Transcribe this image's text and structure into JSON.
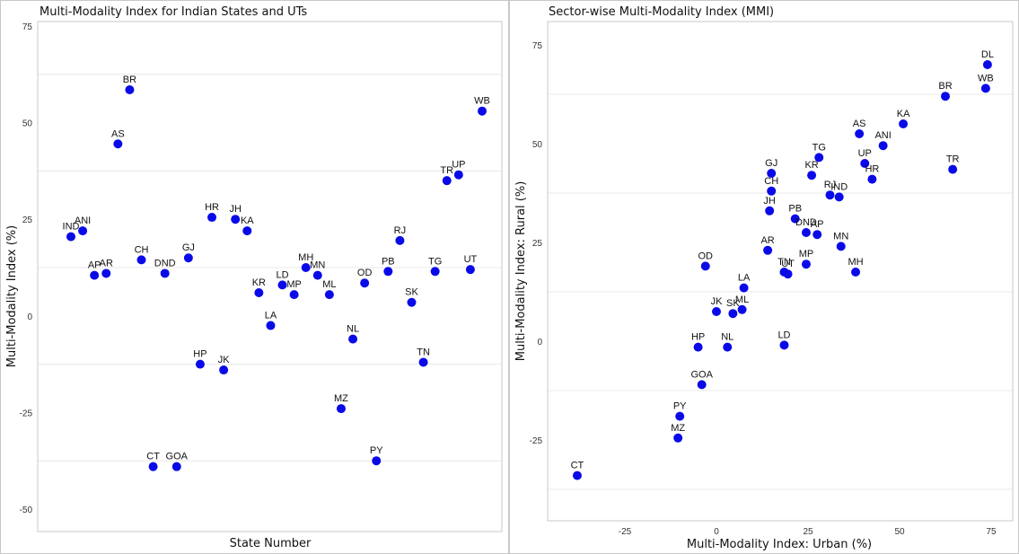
{
  "colors": {
    "point": "#0a0ae8"
  },
  "chart_data": [
    {
      "type": "scatter",
      "title": "Multi-Modality Index for Indian States and UTs",
      "xlabel": "State Number",
      "ylabel": "Multi-Modality Index (%)",
      "ylim": [
        -55,
        75
      ],
      "yticks": [
        75,
        50,
        25,
        0,
        -25,
        -50
      ],
      "xticks": [],
      "grid": "horizontal",
      "points": [
        {
          "label": "IND",
          "x": 1,
          "y": 20.5
        },
        {
          "label": "ANI",
          "x": 2,
          "y": 22
        },
        {
          "label": "AP",
          "x": 3,
          "y": 10.5
        },
        {
          "label": "AR",
          "x": 4,
          "y": 11
        },
        {
          "label": "AS",
          "x": 5,
          "y": 44.5
        },
        {
          "label": "BR",
          "x": 6,
          "y": 58.5
        },
        {
          "label": "CH",
          "x": 7,
          "y": 14.5
        },
        {
          "label": "CT",
          "x": 8,
          "y": -39
        },
        {
          "label": "DND",
          "x": 9,
          "y": 11
        },
        {
          "label": "GOA",
          "x": 10,
          "y": -39
        },
        {
          "label": "GJ",
          "x": 11,
          "y": 15
        },
        {
          "label": "HP",
          "x": 12,
          "y": -12.5
        },
        {
          "label": "HR",
          "x": 13,
          "y": 25.5
        },
        {
          "label": "JK",
          "x": 14,
          "y": -14
        },
        {
          "label": "JH",
          "x": 15,
          "y": 25
        },
        {
          "label": "KA",
          "x": 16,
          "y": 22
        },
        {
          "label": "KR",
          "x": 17,
          "y": 6
        },
        {
          "label": "LA",
          "x": 18,
          "y": -2.5
        },
        {
          "label": "LD",
          "x": 19,
          "y": 8
        },
        {
          "label": "MP",
          "x": 20,
          "y": 5.5
        },
        {
          "label": "MH",
          "x": 21,
          "y": 12.5
        },
        {
          "label": "MN",
          "x": 22,
          "y": 10.5
        },
        {
          "label": "ML",
          "x": 23,
          "y": 5.5
        },
        {
          "label": "MZ",
          "x": 24,
          "y": -24
        },
        {
          "label": "NL",
          "x": 25,
          "y": -6
        },
        {
          "label": "OD",
          "x": 26,
          "y": 8.5
        },
        {
          "label": "PY",
          "x": 27,
          "y": -37.5
        },
        {
          "label": "PB",
          "x": 28,
          "y": 11.5
        },
        {
          "label": "RJ",
          "x": 29,
          "y": 19.5
        },
        {
          "label": "SK",
          "x": 30,
          "y": 3.5
        },
        {
          "label": "TN",
          "x": 31,
          "y": -12
        },
        {
          "label": "TG",
          "x": 32,
          "y": 11.5
        },
        {
          "label": "TR",
          "x": 33,
          "y": 35
        },
        {
          "label": "UP",
          "x": 34,
          "y": 36.5
        },
        {
          "label": "UT",
          "x": 35,
          "y": 12
        },
        {
          "label": "WB",
          "x": 36,
          "y": 53
        }
      ]
    },
    {
      "type": "scatter",
      "title": "Sector-wise Multi-Modality Index (MMI)",
      "xlabel": "Multi-Modality Index: Urban (%)",
      "ylabel": "Multi-Modality Index: Rural (%)",
      "xlim": [
        -40,
        80
      ],
      "ylim": [
        -46,
        82
      ],
      "xticks": [
        -25,
        0,
        25,
        50,
        75
      ],
      "yticks": [
        75,
        50,
        25,
        0,
        -25
      ],
      "grid": "horizontal",
      "points": [
        {
          "label": "DL",
          "x": 74,
          "y": 70
        },
        {
          "label": "WB",
          "x": 73.5,
          "y": 64
        },
        {
          "label": "BR",
          "x": 62.5,
          "y": 62
        },
        {
          "label": "KA",
          "x": 51,
          "y": 55
        },
        {
          "label": "AS",
          "x": 39,
          "y": 52.5
        },
        {
          "label": "ANI",
          "x": 45.5,
          "y": 49.5
        },
        {
          "label": "TR",
          "x": 64.5,
          "y": 43.5
        },
        {
          "label": "TG",
          "x": 28,
          "y": 46.5
        },
        {
          "label": "UP",
          "x": 40.5,
          "y": 45
        },
        {
          "label": "GJ",
          "x": 15,
          "y": 42.5
        },
        {
          "label": "KR",
          "x": 26,
          "y": 42
        },
        {
          "label": "HR",
          "x": 42.5,
          "y": 41
        },
        {
          "label": "CH",
          "x": 15,
          "y": 38
        },
        {
          "label": "RJ",
          "x": 31,
          "y": 37
        },
        {
          "label": "IND",
          "x": 33.5,
          "y": 36.5
        },
        {
          "label": "JH",
          "x": 14.5,
          "y": 33
        },
        {
          "label": "PB",
          "x": 21.5,
          "y": 31
        },
        {
          "label": "DND",
          "x": 24.5,
          "y": 27.5
        },
        {
          "label": "AP",
          "x": 27.5,
          "y": 27
        },
        {
          "label": "MN",
          "x": 34,
          "y": 24
        },
        {
          "label": "AR",
          "x": 14,
          "y": 23
        },
        {
          "label": "MP",
          "x": 24.5,
          "y": 19.5
        },
        {
          "label": "OD",
          "x": -3,
          "y": 19
        },
        {
          "label": "MH",
          "x": 38,
          "y": 17.5
        },
        {
          "label": "TN",
          "x": 18.5,
          "y": 17.5
        },
        {
          "label": "UT",
          "x": 19.5,
          "y": 17
        },
        {
          "label": "LA",
          "x": 7.5,
          "y": 13.5
        },
        {
          "label": "ML",
          "x": 7,
          "y": 8
        },
        {
          "label": "JK",
          "x": 0,
          "y": 7.5
        },
        {
          "label": "SK",
          "x": 4.5,
          "y": 7
        },
        {
          "label": "HP",
          "x": -5,
          "y": -1.5
        },
        {
          "label": "NL",
          "x": 3,
          "y": -1.5
        },
        {
          "label": "LD",
          "x": 18.5,
          "y": -1
        },
        {
          "label": "GOA",
          "x": -4,
          "y": -11
        },
        {
          "label": "PY",
          "x": -10,
          "y": -19
        },
        {
          "label": "MZ",
          "x": -10.5,
          "y": -24.5
        },
        {
          "label": "CT",
          "x": -38,
          "y": -34
        }
      ]
    }
  ]
}
